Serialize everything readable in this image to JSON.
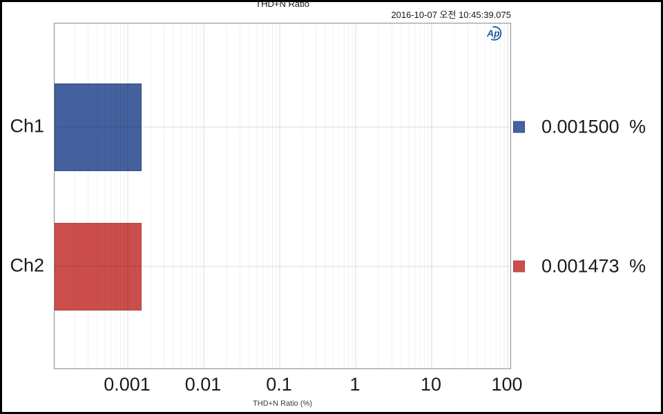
{
  "header": {
    "title": "THD+N Ratio",
    "timestamp": "2016-10-07 오전 10:45:39.075"
  },
  "logo": {
    "text": "Ap",
    "color": "#1E5C9E"
  },
  "chart_data": {
    "type": "bar",
    "orientation": "horizontal",
    "title": "THD+N Ratio",
    "xlabel": "THD+N Ratio (%)",
    "x_scale": "log",
    "xlim": [
      0.000107,
      111
    ],
    "grid": "on",
    "legend_position": "right",
    "categories": [
      "Ch1",
      "Ch2"
    ],
    "values": [
      0.0015,
      0.001473
    ],
    "bar_colors": [
      "#44619E",
      "#CB4E4C"
    ],
    "bar_border_colors": [
      "#2F4B7E",
      "#B24341"
    ],
    "x_tick_labels": [
      "0.001",
      "0.01",
      "0.1",
      "1",
      "10",
      "100"
    ],
    "x_tick_values": [
      0.001,
      0.01,
      0.1,
      1,
      10,
      100
    ]
  },
  "legend": {
    "entries": [
      {
        "label": "0.001500 %",
        "color": "#44619E",
        "border": "#2F4B7E"
      },
      {
        "label": "0.001473 %",
        "color": "#CB4E4C",
        "border": "#B24341"
      }
    ]
  }
}
